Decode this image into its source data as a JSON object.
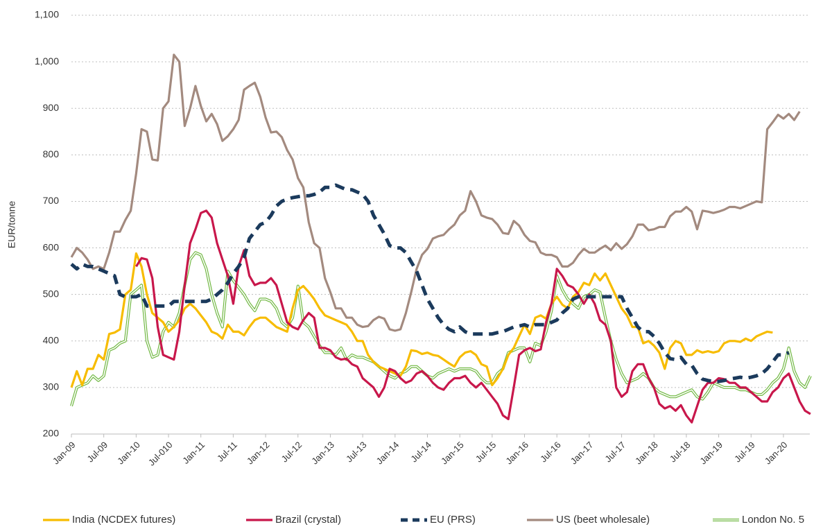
{
  "chart_data": {
    "type": "line",
    "y_label": "EUR/tonne",
    "ylim": [
      200,
      1100
    ],
    "yticks": [
      200,
      300,
      400,
      500,
      600,
      700,
      800,
      900,
      {
        "value": 1000,
        "label": "1,000"
      },
      {
        "value": 1100,
        "label": "1,100"
      }
    ],
    "grid": true,
    "legend": "bottom",
    "categories": [
      "Jan-09",
      null,
      null,
      null,
      null,
      null,
      "Jul-09",
      null,
      null,
      null,
      null,
      null,
      "Jan-10",
      null,
      null,
      null,
      null,
      null,
      "Jul-010",
      null,
      null,
      null,
      null,
      null,
      "Jan-11",
      null,
      null,
      null,
      null,
      null,
      "Jul-11",
      null,
      null,
      null,
      null,
      null,
      "Jan-12",
      null,
      null,
      null,
      null,
      null,
      "Jul-12",
      null,
      null,
      null,
      null,
      null,
      "Jan-13",
      null,
      null,
      null,
      null,
      null,
      "Jul-13",
      null,
      null,
      null,
      null,
      null,
      "Jan-14",
      null,
      null,
      null,
      null,
      null,
      "Jul-14",
      null,
      null,
      null,
      null,
      null,
      "Jan-15",
      null,
      null,
      null,
      null,
      null,
      "Jul-15",
      null,
      null,
      null,
      null,
      null,
      "Jan-16",
      null,
      null,
      null,
      null,
      null,
      "Jul-16",
      null,
      null,
      null,
      null,
      null,
      "Jan-17",
      null,
      null,
      null,
      null,
      null,
      "Jul-17",
      null,
      null,
      null,
      null,
      null,
      "Jan-18",
      null,
      null,
      null,
      null,
      null,
      "Jul-18",
      null,
      null,
      null,
      null,
      null,
      "Jan-19",
      null,
      null,
      null,
      null,
      null,
      "Jul-19",
      null,
      null,
      null,
      null,
      null,
      "Jan-20",
      null,
      null,
      null,
      null,
      null
    ],
    "series": [
      {
        "name": "India (NCDEX futures)",
        "color": "#f7bc00",
        "style": "solid",
        "values": [
          300,
          335,
          305,
          340,
          340,
          370,
          360,
          415,
          418,
          425,
          500,
          510,
          588,
          560,
          500,
          460,
          450,
          440,
          420,
          430,
          445,
          470,
          480,
          470,
          455,
          440,
          420,
          415,
          405,
          435,
          420,
          420,
          412,
          430,
          445,
          450,
          450,
          440,
          430,
          425,
          420,
          470,
          510,
          518,
          505,
          490,
          470,
          455,
          450,
          445,
          440,
          435,
          420,
          400,
          400,
          370,
          355,
          345,
          340,
          335,
          330,
          325,
          345,
          380,
          378,
          372,
          375,
          370,
          368,
          360,
          352,
          345,
          365,
          375,
          378,
          370,
          350,
          345,
          305,
          320,
          340,
          370,
          385,
          410,
          435,
          415,
          450,
          455,
          448,
          480,
          495,
          478,
          470,
          495,
          505,
          525,
          520,
          545,
          530,
          545,
          520,
          495,
          470,
          455,
          430,
          430,
          395,
          400,
          390,
          375,
          340,
          385,
          400,
          395,
          370,
          370,
          380,
          375,
          378,
          375,
          378,
          395,
          400,
          400,
          398,
          405,
          400,
          410,
          415,
          420,
          418,
          null,
          null,
          null,
          null,
          null,
          null,
          null
        ]
      },
      {
        "name": "Brazil (crystal)",
        "color": "#c8174b",
        "style": "solid",
        "values": [
          null,
          null,
          null,
          null,
          null,
          null,
          null,
          null,
          null,
          null,
          null,
          null,
          560,
          578,
          575,
          535,
          430,
          370,
          365,
          360,
          420,
          520,
          610,
          640,
          675,
          680,
          665,
          610,
          575,
          540,
          480,
          560,
          595,
          540,
          520,
          525,
          525,
          535,
          520,
          480,
          440,
          430,
          425,
          445,
          460,
          450,
          385,
          385,
          380,
          365,
          360,
          362,
          350,
          345,
          320,
          310,
          300,
          280,
          300,
          340,
          335,
          320,
          310,
          315,
          330,
          335,
          325,
          310,
          300,
          295,
          310,
          320,
          320,
          325,
          310,
          300,
          310,
          295,
          280,
          265,
          240,
          232,
          300,
          370,
          380,
          385,
          378,
          382,
          440,
          480,
          555,
          540,
          520,
          515,
          500,
          480,
          500,
          480,
          445,
          435,
          400,
          300,
          280,
          290,
          335,
          350,
          350,
          320,
          300,
          265,
          255,
          260,
          250,
          262,
          240,
          225,
          260,
          295,
          310,
          310,
          320,
          318,
          310,
          310,
          300,
          300,
          290,
          280,
          270,
          270,
          290,
          300,
          320,
          330,
          300,
          270,
          250,
          243
        ]
      },
      {
        "name": "EU (PRS)",
        "color": "#1b3a5c",
        "style": "dashed",
        "values": [
          565,
          555,
          565,
          560,
          560,
          555,
          550,
          545,
          540,
          500,
          495,
          495,
          495,
          500,
          475,
          475,
          475,
          475,
          475,
          485,
          485,
          485,
          485,
          485,
          485,
          485,
          490,
          500,
          510,
          525,
          545,
          560,
          580,
          620,
          635,
          650,
          655,
          670,
          690,
          700,
          705,
          708,
          710,
          712,
          712,
          715,
          720,
          730,
          730,
          735,
          730,
          725,
          725,
          720,
          715,
          700,
          670,
          650,
          630,
          605,
          600,
          600,
          590,
          570,
          550,
          520,
          490,
          470,
          450,
          435,
          425,
          420,
          430,
          420,
          415,
          415,
          415,
          415,
          415,
          418,
          420,
          425,
          430,
          432,
          435,
          430,
          435,
          435,
          435,
          440,
          445,
          460,
          470,
          490,
          495,
          495,
          495,
          495,
          495,
          495,
          495,
          495,
          495,
          470,
          450,
          430,
          420,
          420,
          410,
          395,
          375,
          362,
          360,
          365,
          350,
          348,
          330,
          318,
          315,
          313,
          313,
          315,
          318,
          320,
          322,
          320,
          322,
          325,
          330,
          340,
          355,
          370,
          370,
          375,
          null,
          null,
          null,
          null
        ]
      },
      {
        "name": "US (beet wholesale)",
        "color": "#a38a7f",
        "style": "solid",
        "values": [
          580,
          600,
          590,
          575,
          555,
          560,
          555,
          590,
          635,
          635,
          660,
          680,
          760,
          855,
          850,
          790,
          788,
          900,
          915,
          1015,
          1000,
          862,
          900,
          948,
          905,
          872,
          888,
          866,
          830,
          840,
          855,
          875,
          940,
          948,
          955,
          925,
          880,
          848,
          850,
          838,
          810,
          790,
          750,
          730,
          655,
          610,
          600,
          535,
          505,
          470,
          470,
          450,
          450,
          435,
          430,
          432,
          445,
          452,
          448,
          425,
          422,
          425,
          460,
          505,
          555,
          585,
          598,
          620,
          625,
          628,
          640,
          650,
          670,
          680,
          722,
          700,
          670,
          665,
          662,
          650,
          632,
          630,
          658,
          648,
          628,
          615,
          612,
          590,
          585,
          585,
          580,
          560,
          560,
          568,
          585,
          598,
          590,
          590,
          598,
          605,
          595,
          610,
          598,
          608,
          625,
          650,
          650,
          638,
          640,
          645,
          645,
          668,
          678,
          678,
          688,
          678,
          640,
          680,
          678,
          675,
          678,
          682,
          688,
          688,
          685,
          690,
          695,
          700,
          698,
          855,
          870,
          886,
          878,
          888,
          875,
          893,
          null,
          null
        ]
      },
      {
        "name": "London No. 5",
        "color": "#71b843",
        "style": "double",
        "values": [
          260,
          300,
          305,
          310,
          325,
          315,
          325,
          380,
          385,
          395,
          400,
          500,
          510,
          520,
          400,
          365,
          370,
          420,
          440,
          430,
          460,
          520,
          575,
          590,
          585,
          555,
          500,
          460,
          430,
          550,
          530,
          515,
          500,
          480,
          465,
          490,
          490,
          485,
          470,
          440,
          430,
          450,
          518,
          440,
          430,
          410,
          390,
          375,
          375,
          370,
          385,
          360,
          370,
          365,
          365,
          360,
          355,
          345,
          335,
          325,
          320,
          330,
          335,
          345,
          345,
          335,
          325,
          320,
          330,
          335,
          340,
          335,
          340,
          340,
          340,
          335,
          320,
          310,
          310,
          330,
          340,
          375,
          380,
          385,
          385,
          355,
          395,
          390,
          420,
          465,
          540,
          510,
          490,
          480,
          470,
          495,
          500,
          510,
          505,
          450,
          400,
          360,
          330,
          310,
          315,
          320,
          330,
          320,
          300,
          290,
          285,
          280,
          280,
          285,
          290,
          295,
          280,
          275,
          290,
          310,
          305,
          300,
          300,
          300,
          295,
          295,
          290,
          285,
          285,
          295,
          310,
          320,
          340,
          385,
          335,
          310,
          300,
          325
        ]
      }
    ]
  }
}
